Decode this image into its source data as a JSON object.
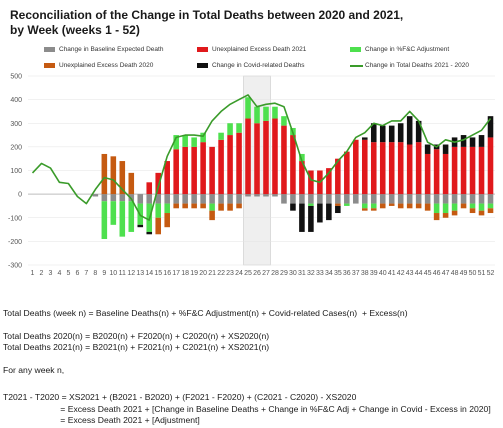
{
  "title": "Reconciliation of the Change in Total Deaths between 2020 and 2021,\nby Week (weeks 1 - 52)",
  "legend": [
    {
      "label": "Change in Baseline Expected Death",
      "color": "#8c8c8c",
      "kind": "bar"
    },
    {
      "label": "Unexplained Excess Death 2021",
      "color": "#e0191c",
      "kind": "bar"
    },
    {
      "label": "Change in %F&C Adjustment",
      "color": "#4ee04e",
      "kind": "bar"
    },
    {
      "label": "Unexplained Excess Death 2020",
      "color": "#c55a11",
      "kind": "bar"
    },
    {
      "label": "Change in Covid-related Deaths",
      "color": "#111111",
      "kind": "bar"
    },
    {
      "label": "Change in Total Deaths 2021 - 2020",
      "color": "#3a9b2a",
      "kind": "line"
    }
  ],
  "chart_data": {
    "type": "bar",
    "title": "Reconciliation of the Change in Total Deaths between 2020 and 2021, by Week (weeks 1 - 52)",
    "ylim": [
      -300,
      500
    ],
    "yticks": [
      -300,
      -200,
      -100,
      0,
      100,
      200,
      300,
      400,
      500
    ],
    "grid": true,
    "stacked": true,
    "highlight_weeks": [
      25,
      26,
      27
    ],
    "categories": [
      "1",
      "2",
      "3",
      "4",
      "5",
      "6",
      "7",
      "8",
      "9",
      "10",
      "11",
      "12",
      "13",
      "14",
      "15",
      "16",
      "17",
      "18",
      "19",
      "20",
      "21",
      "22",
      "23",
      "24",
      "25",
      "26",
      "27",
      "28",
      "29",
      "30",
      "31",
      "32",
      "33",
      "34",
      "35",
      "36",
      "37",
      "38",
      "39",
      "40",
      "41",
      "42",
      "43",
      "44",
      "45",
      "46",
      "47",
      "48",
      "49",
      "50",
      "51",
      "52"
    ],
    "series": [
      {
        "name": "Change in Baseline Expected Death",
        "color": "#8c8c8c",
        "values": [
          0,
          0,
          0,
          0,
          0,
          0,
          0,
          -10,
          -30,
          -30,
          -30,
          -30,
          -40,
          -40,
          -40,
          -40,
          -40,
          -40,
          -40,
          -40,
          -40,
          -40,
          -40,
          -40,
          -10,
          -10,
          -10,
          -10,
          -40,
          -40,
          -40,
          -40,
          -40,
          -40,
          -40,
          -40,
          -40,
          -40,
          -40,
          -40,
          -40,
          -40,
          -40,
          -40,
          -40,
          -40,
          -40,
          -40,
          -40,
          -40,
          -40,
          -40
        ]
      },
      {
        "name": "Unexplained Excess Death 2021",
        "color": "#e0191c",
        "values": [
          0,
          0,
          0,
          0,
          0,
          0,
          0,
          0,
          0,
          0,
          0,
          0,
          0,
          50,
          90,
          140,
          190,
          200,
          200,
          220,
          200,
          230,
          250,
          260,
          320,
          300,
          310,
          320,
          290,
          250,
          140,
          100,
          100,
          110,
          150,
          180,
          230,
          230,
          220,
          220,
          220,
          220,
          210,
          220,
          170,
          190,
          170,
          200,
          200,
          200,
          200,
          240
        ]
      },
      {
        "name": "Change in %F&C Adjustment",
        "color": "#4ee04e",
        "values": [
          0,
          0,
          0,
          0,
          0,
          0,
          0,
          0,
          -160,
          -100,
          -150,
          -130,
          -90,
          -120,
          -60,
          -40,
          60,
          50,
          40,
          40,
          -30,
          30,
          50,
          40,
          90,
          70,
          60,
          50,
          40,
          30,
          30,
          -10,
          0,
          0,
          0,
          -10,
          0,
          -20,
          -20,
          0,
          0,
          0,
          0,
          0,
          0,
          -40,
          -40,
          -30,
          0,
          -20,
          -30,
          -20
        ]
      },
      {
        "name": "Unexplained Excess Death 2020",
        "color": "#c55a11",
        "values": [
          0,
          0,
          0,
          0,
          0,
          0,
          0,
          0,
          170,
          160,
          140,
          90,
          0,
          0,
          -70,
          -60,
          -20,
          -20,
          -20,
          -20,
          -40,
          -30,
          -30,
          -20,
          0,
          0,
          0,
          0,
          0,
          0,
          0,
          0,
          0,
          0,
          -10,
          0,
          0,
          -10,
          -10,
          -20,
          -10,
          -20,
          -20,
          -20,
          -30,
          -30,
          -20,
          -20,
          -20,
          -20,
          -20,
          -20
        ]
      },
      {
        "name": "Change in Covid-related Deaths",
        "color": "#111111",
        "values": [
          0,
          0,
          0,
          0,
          0,
          0,
          0,
          0,
          0,
          0,
          0,
          0,
          -10,
          -10,
          0,
          0,
          0,
          0,
          0,
          0,
          0,
          0,
          0,
          0,
          0,
          0,
          0,
          0,
          0,
          -30,
          -120,
          -110,
          -80,
          -70,
          -30,
          0,
          0,
          10,
          80,
          70,
          70,
          80,
          120,
          90,
          40,
          20,
          40,
          40,
          50,
          40,
          50,
          90
        ]
      }
    ],
    "line": {
      "name": "Change in Total Deaths 2021 - 2020",
      "color": "#3a9b2a",
      "values": [
        90,
        130,
        110,
        50,
        45,
        -10,
        -40,
        20,
        70,
        60,
        20,
        -20,
        -90,
        -110,
        30,
        160,
        240,
        250,
        250,
        245,
        310,
        350,
        380,
        400,
        420,
        370,
        380,
        385,
        370,
        260,
        140,
        60,
        50,
        90,
        140,
        180,
        240,
        260,
        300,
        290,
        310,
        310,
        350,
        310,
        220,
        200,
        230,
        220,
        230,
        250,
        270,
        320
      ]
    }
  },
  "formulas": [
    "Total Deaths (week n) = Baseline Deaths(n) + %F&C Adjustment(n) + Covid-related Cases(n)  + Excess(n)",
    "",
    "Total Deaths 2020(n) = B2020(n) + F2020(n) + C2020(n) + XS2020(n)",
    "Total Deaths 2021(n) = B2021(n) + F2021(n) + C2021(n) + XS2021(n)",
    "",
    "For any week n,",
    "",
    "T2021 - T2020 = XS2021 + (B2021 - B2020) + (F2021 - F2020) + (C2021 - C2020) - XS2020",
    "                        = Excess Death 2021 + [Change in Baseline Deaths + Change in %F&C Adj + Change in Covid - Excess in 2020]",
    "                        = Excess Death 2021 + [Adjustment]"
  ]
}
